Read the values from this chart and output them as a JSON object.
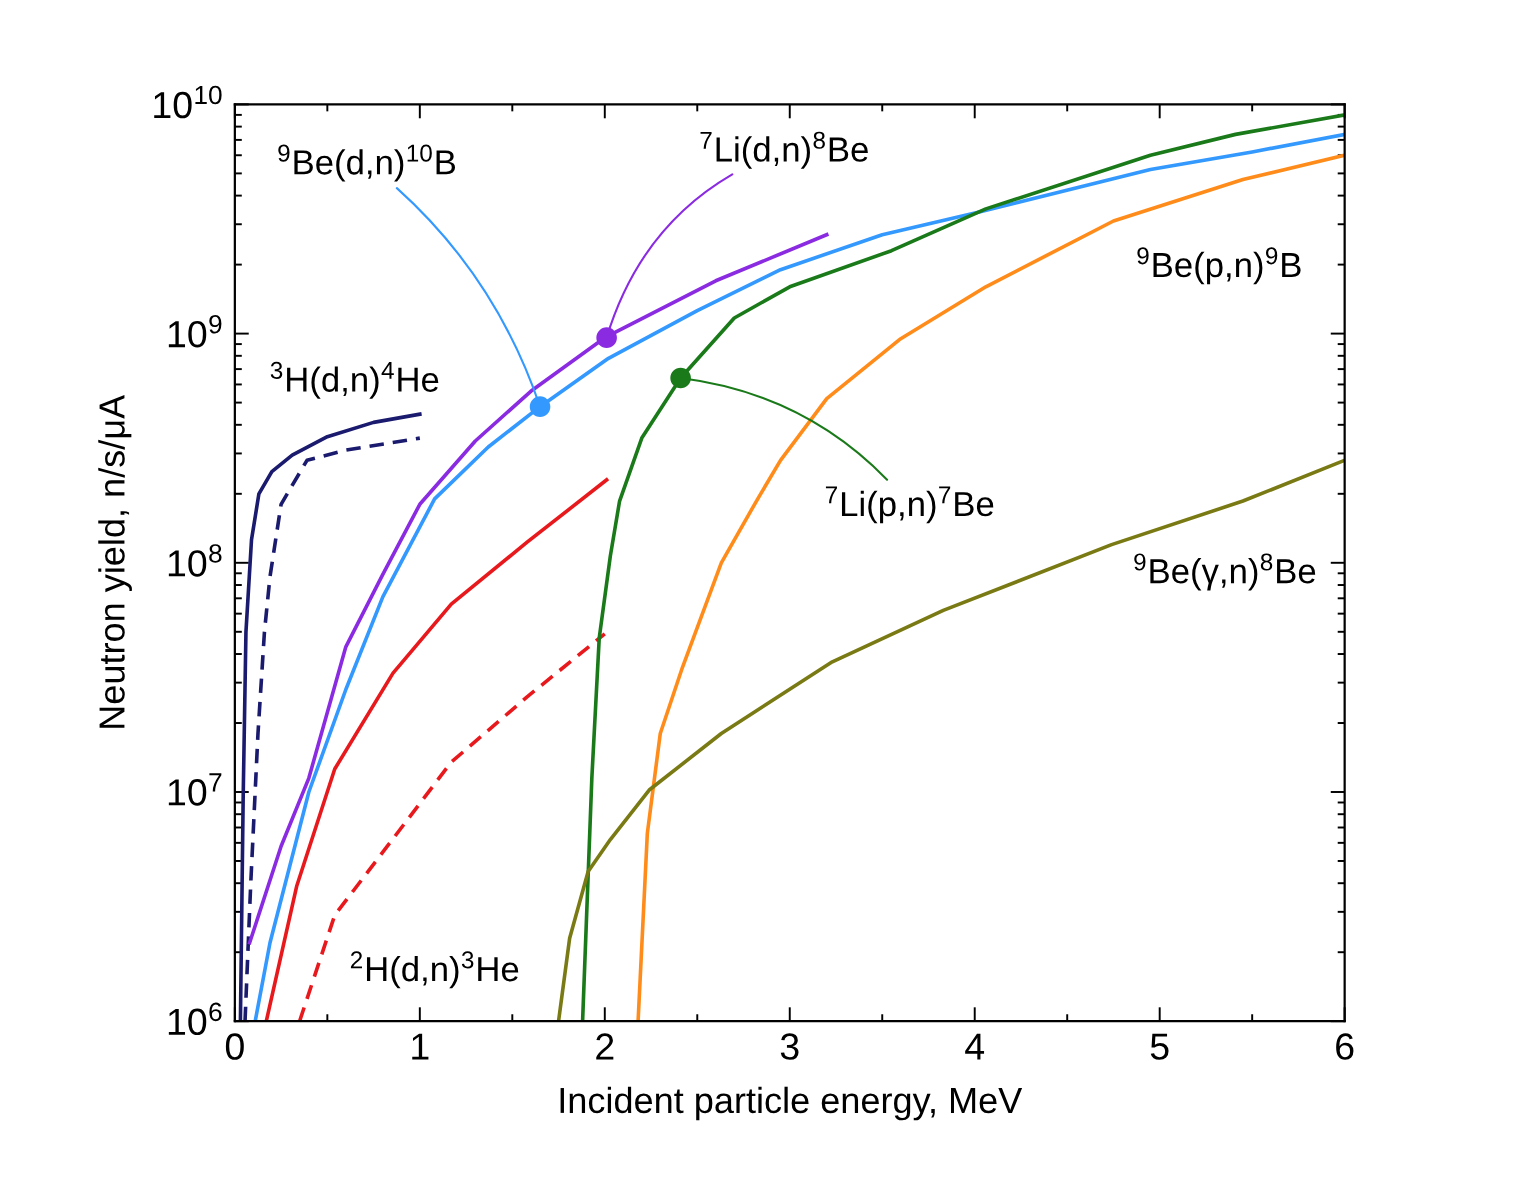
{
  "chart_data": {
    "type": "line",
    "xlabel": "Incident particle energy, MeV",
    "ylabel": "Neutron yield, n/s/μA",
    "log": "y",
    "grid": false,
    "legend": false,
    "marker": "none",
    "xlim": [
      0,
      6
    ],
    "xticks": [
      0,
      1,
      2,
      3,
      4,
      5,
      6
    ],
    "ylim": [
      1000000.0,
      10000000000.0
    ],
    "yticks": [
      {
        "value": 1000000.0,
        "label": "10$^{6}$"
      },
      {
        "value": 10000000.0,
        "label": "10$^{7}$"
      },
      {
        "value": 100000000.0,
        "label": "10$^{8}$"
      },
      {
        "value": 1000000000.0,
        "label": "10$^{9}$"
      },
      {
        "value": 10000000000.0,
        "label": "10$^{10}$"
      }
    ],
    "series": [
      {
        "color": "#1a1a6e",
        "line_style": "solid",
        "x": [
          0.03,
          0.045,
          0.06,
          0.09,
          0.13,
          0.2,
          0.31,
          0.5,
          0.75,
          1.0
        ],
        "values": [
          1000000.0,
          9500000.0,
          50000000.0,
          126000000.0,
          200000000.0,
          250000000.0,
          295000000.0,
          355000000.0,
          410000000.0,
          445000000.0
        ]
      },
      {
        "color": "#1a1a6e",
        "line_style": "dashed",
        "x": [
          0.055,
          0.086,
          0.125,
          0.16,
          0.19,
          0.25,
          0.39,
          0.6,
          1.0
        ],
        "values": [
          1000000.0,
          4000000.0,
          18000000.0,
          50000000.0,
          87000000.0,
          180000000.0,
          280000000.0,
          310000000.0,
          350000000.0
        ]
      },
      {
        "color": "#8a2be2",
        "line_style": "solid",
        "x": [
          0.08,
          0.25,
          0.4,
          0.6,
          0.8,
          1.0,
          1.3,
          1.6,
          2.0,
          2.6,
          3.2
        ],
        "values": [
          2200000.0,
          5800000.0,
          11500000.0,
          43000000.0,
          89000000.0,
          180000000.0,
          340000000.0,
          560000000.0,
          960000000.0,
          1700000000.0,
          2700000000.0
        ]
      },
      {
        "color": "#3399ff",
        "line_style": "solid",
        "x": [
          0.11,
          0.19,
          0.4,
          0.6,
          0.8,
          1.08,
          1.37,
          1.65,
          2.02,
          2.5,
          2.95,
          3.5,
          4.03,
          4.95,
          5.5,
          6.0
        ],
        "values": [
          1000000.0,
          2200000.0,
          10000000.0,
          28000000.0,
          71000000.0,
          190000000.0,
          320000000.0,
          480000000.0,
          780000000.0,
          1260000000.0,
          1900000000.0,
          2700000000.0,
          3400000000.0,
          5200000000.0,
          6200000000.0,
          7400000000.0
        ]
      },
      {
        "color": "#e8191c",
        "line_style": "solid",
        "x": [
          0.17,
          0.335,
          0.54,
          0.855,
          1.17,
          1.58,
          2.01
        ],
        "values": [
          1000000.0,
          3900000.0,
          12600000.0,
          33000000.0,
          66000000.0,
          123000000.0,
          230000000.0
        ]
      },
      {
        "color": "#e8191c",
        "line_style": "dashed",
        "x": [
          0.35,
          0.54,
          0.81,
          1.17,
          1.58,
          2.0
        ],
        "values": [
          1000000.0,
          2900000.0,
          5600000.0,
          13500000.0,
          26000000.0,
          49000000.0
        ]
      },
      {
        "color": "#1a7a1a",
        "line_style": "solid",
        "x": [
          1.88,
          1.93,
          1.97,
          2.03,
          2.08,
          2.2,
          2.41,
          2.7,
          3.0,
          3.55,
          4.06,
          4.95,
          5.41,
          6.0
        ],
        "values": [
          1000000.0,
          11500000.0,
          47000000.0,
          107000000.0,
          186000000.0,
          350000000.0,
          640000000.0,
          1170000000.0,
          1600000000.0,
          2300000000.0,
          3500000000.0,
          6000000000.0,
          7400000000.0,
          9000000000.0
        ]
      },
      {
        "color": "#ff8c1a",
        "line_style": "solid",
        "x": [
          2.18,
          2.23,
          2.3,
          2.42,
          2.63,
          2.82,
          2.95,
          3.2,
          3.6,
          4.06,
          4.75,
          5.45,
          6.0
        ],
        "values": [
          1000000.0,
          6600000.0,
          18000000.0,
          35000000.0,
          100000000.0,
          186000000.0,
          280000000.0,
          520000000.0,
          950000000.0,
          1600000000.0,
          3100000000.0,
          4700000000.0,
          6000000000.0
        ]
      },
      {
        "color": "#7a7a14",
        "line_style": "solid",
        "x": [
          1.75,
          1.81,
          1.91,
          2.03,
          2.24,
          2.63,
          3.23,
          3.83,
          4.74,
          5.45,
          6.0
        ],
        "values": [
          1000000.0,
          2300000.0,
          4500000.0,
          6200000.0,
          10200000.0,
          18000000.0,
          37000000.0,
          62000000.0,
          120000000.0,
          186000000.0,
          280000000.0
        ]
      },
      {
        "type": "scatter",
        "marker": "circle",
        "color": "#3399ff",
        "x": [
          1.65
        ],
        "values": [
          480000000.0
        ]
      },
      {
        "type": "scatter",
        "marker": "circle",
        "color": "#8a2be2",
        "x": [
          2.01
        ],
        "values": [
          960000000.0
        ]
      },
      {
        "type": "scatter",
        "marker": "circle",
        "color": "#1a7a1a",
        "x": [
          2.41
        ],
        "values": [
          640000000.0
        ]
      }
    ],
    "annotations": [
      {
        "text": "$^{9}$Be(d,n)$^{10}$B",
        "x": 1.65,
        "y": 480000000.0
      },
      {
        "text": "$^{7}$Li(d,n)$^{8}$Be",
        "x": 2.01,
        "y": 960000000.0
      },
      "$^{3}$H(d,n)$^{4}$He",
      "$^{2}$H(d,n)$^{3}$He",
      {
        "text": "$^{7}$Li(p,n)$^{7}$Be",
        "x": 2.41,
        "y": 640000000.0
      },
      "$^{9}$Be(p,n)$^{9}$B",
      "$^{9}$Be(γ,n)$^{8}$Be"
    ]
  }
}
